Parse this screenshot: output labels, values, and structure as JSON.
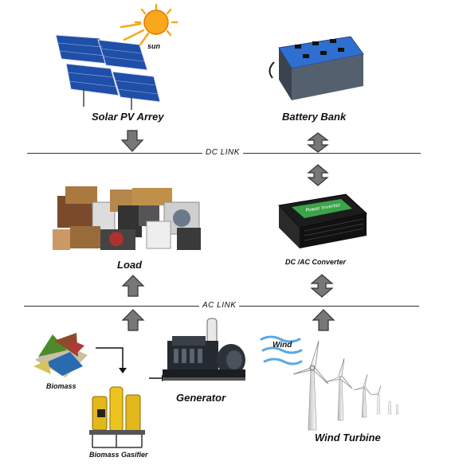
{
  "links": {
    "dc": "DC LINK",
    "ac": "AC LINK"
  },
  "components": {
    "sun": "sun",
    "solar": "Solar PV Arrey",
    "battery": "Battery Bank",
    "load": "Load",
    "converter": "DC /AC Converter",
    "biomass": "Biomass",
    "gasifier": "Biomass Gasifier",
    "generator": "Generator",
    "wind": "Wind",
    "turbine": "Wind Turbine"
  },
  "converter_display": "Power Inverter",
  "colors": {
    "sun": "#f7a81b",
    "solar_panel": "#1f4fa8",
    "battery": "#2f6fd0",
    "arrow": "#777777",
    "link_line": "#333333"
  }
}
